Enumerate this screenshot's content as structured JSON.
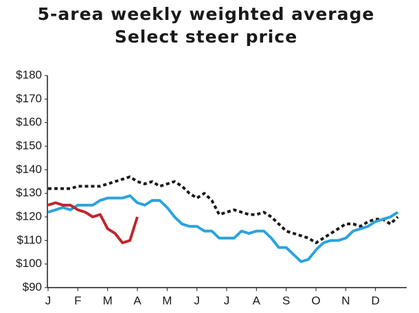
{
  "chart_data": {
    "type": "line",
    "title": [
      "5-area weekly weighted average",
      "Select steer price"
    ],
    "x": [
      0,
      0.25,
      0.5,
      0.75,
      1,
      1.25,
      1.5,
      1.75,
      2,
      2.25,
      2.5,
      2.75,
      3,
      3.25,
      3.5,
      3.75,
      4,
      4.25,
      4.5,
      4.75,
      5,
      5.25,
      5.5,
      5.75,
      6,
      6.25,
      6.5,
      6.75,
      7,
      7.25,
      7.5,
      7.75,
      8,
      8.25,
      8.5,
      8.75,
      9,
      9.25,
      9.5,
      9.75,
      10,
      10.25,
      10.5,
      10.75,
      11,
      11.25,
      11.5,
      11.75
    ],
    "xlim": [
      0,
      12
    ],
    "xticks": [
      {
        "value": 0,
        "label": "J"
      },
      {
        "value": 1,
        "label": "F"
      },
      {
        "value": 2,
        "label": "M"
      },
      {
        "value": 3,
        "label": "A"
      },
      {
        "value": 4,
        "label": "M"
      },
      {
        "value": 5,
        "label": "J"
      },
      {
        "value": 6,
        "label": "J"
      },
      {
        "value": 7,
        "label": "A"
      },
      {
        "value": 8,
        "label": "S"
      },
      {
        "value": 9,
        "label": "O"
      },
      {
        "value": 10,
        "label": "N"
      },
      {
        "value": 11,
        "label": "D"
      }
    ],
    "ylim": [
      90,
      180
    ],
    "yticks": [
      {
        "value": 90,
        "label": "$90"
      },
      {
        "value": 100,
        "label": "$100"
      },
      {
        "value": 110,
        "label": "$110"
      },
      {
        "value": 120,
        "label": "$120"
      },
      {
        "value": 130,
        "label": "$130"
      },
      {
        "value": 140,
        "label": "$140"
      },
      {
        "value": 150,
        "label": "$150"
      },
      {
        "value": 160,
        "label": "$160"
      },
      {
        "value": 170,
        "label": "$170"
      },
      {
        "value": 180,
        "label": "$180"
      }
    ],
    "grid": false,
    "series": [
      {
        "color": "#1a1a1a",
        "style": "dotted",
        "values": [
          132,
          132,
          132,
          132,
          133,
          133,
          133,
          133,
          134,
          135,
          136,
          137,
          135,
          134,
          135,
          133,
          134,
          135,
          133,
          130,
          128,
          130,
          127,
          121,
          122,
          123,
          122,
          121,
          121,
          122,
          120,
          117,
          114,
          113,
          112,
          111,
          109,
          111,
          113,
          115,
          117,
          117,
          116,
          118,
          119,
          119,
          117,
          120
        ]
      },
      {
        "color": "#2ba3dc",
        "style": "solid",
        "values": [
          122,
          123,
          124,
          123,
          125,
          125,
          125,
          127,
          128,
          128,
          128,
          129,
          126,
          125,
          127,
          127,
          124,
          120,
          117,
          116,
          116,
          114,
          114,
          111,
          111,
          111,
          114,
          113,
          114,
          114,
          111,
          107,
          107,
          104,
          101,
          102,
          106,
          109,
          110,
          110,
          111,
          114,
          115,
          116,
          118,
          119,
          120,
          122
        ]
      },
      {
        "color": "#c0272d",
        "style": "solid",
        "values": [
          125,
          126,
          125,
          125,
          123,
          122,
          120,
          121,
          115,
          113,
          109,
          110,
          120,
          null,
          null,
          null,
          null,
          null,
          null,
          null,
          null,
          null,
          null,
          null,
          null,
          null,
          null,
          null,
          null,
          null,
          null,
          null,
          null,
          null,
          null,
          null,
          null,
          null,
          null,
          null,
          null,
          null,
          null,
          null,
          null,
          null,
          null,
          null
        ]
      }
    ]
  }
}
